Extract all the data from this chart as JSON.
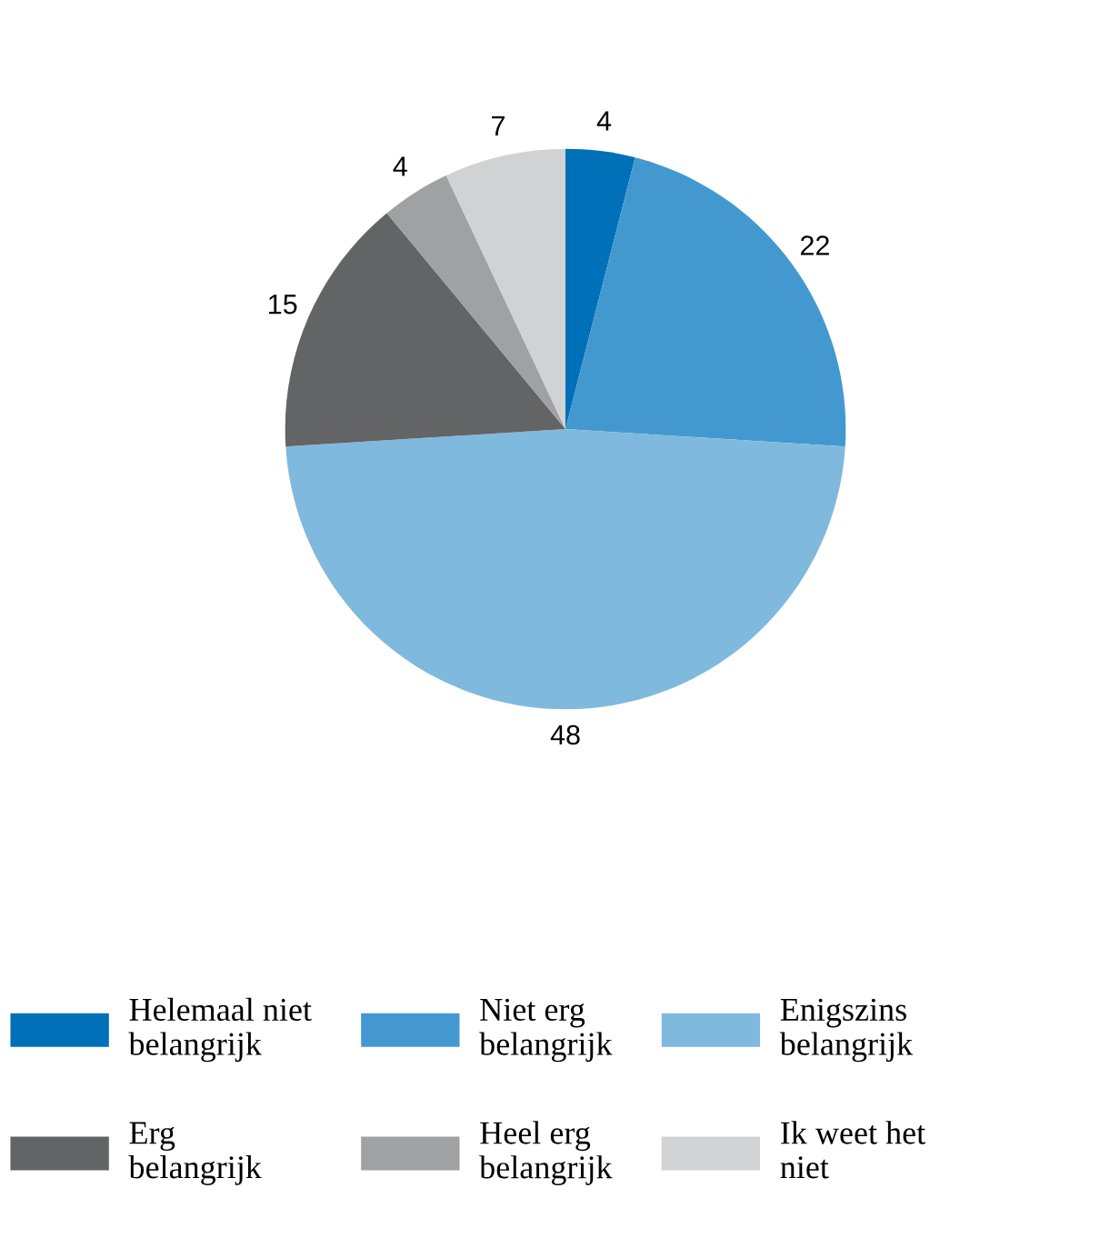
{
  "chart_data": {
    "type": "pie",
    "categories": [
      "Helemaal niet belangrijk",
      "Niet erg belangrijk",
      "Enigszins belangrijk",
      "Erg belangrijk",
      "Heel erg belangrijk",
      "Ik weet het niet"
    ],
    "values": [
      4,
      22,
      48,
      15,
      4,
      7
    ],
    "colors": [
      "#0070b8",
      "#4399cf",
      "#7fb9dd",
      "#636466",
      "#a0a1a3",
      "#d1d2d4"
    ],
    "data_labels": true,
    "legend": "bottom"
  }
}
